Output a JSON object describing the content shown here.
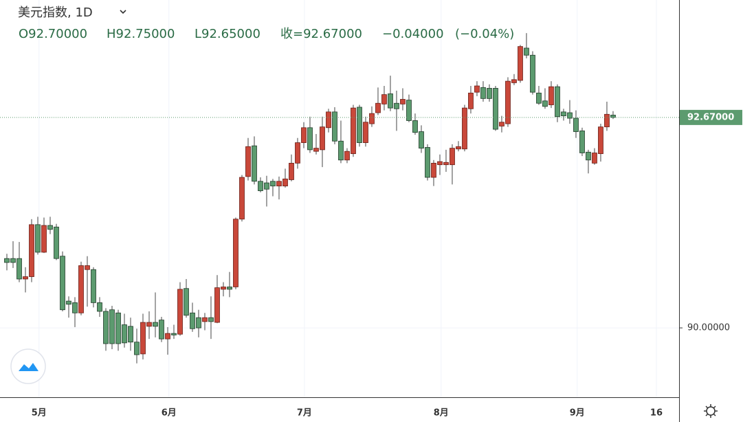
{
  "header": {
    "title": "美元指数, 1D",
    "ohlc": [
      "O92.70000",
      "H92.75000",
      "L92.65000",
      "收=92.67000",
      "−0.04000",
      "(−0.04%)"
    ]
  },
  "chart_data": {
    "type": "candlestick",
    "open": [
      90.88,
      90.88,
      90.88,
      90.62,
      90.65,
      91.31,
      90.96,
      91.3,
      91.28,
      90.91,
      90.34,
      90.32,
      90.19,
      90.74,
      90.74,
      90.32,
      90.21,
      90.23,
      90.19,
      90.04,
      90.02,
      89.82,
      89.67,
      90.02,
      90.07,
      90.1,
      89.86,
      89.93,
      89.92,
      90.5,
      90.19,
      90.13,
      90.08,
      90.13,
      90.07,
      90.49,
      90.52,
      90.52,
      91.38,
      91.92,
      92.31,
      91.86,
      91.84,
      91.86,
      91.8,
      91.8,
      91.88,
      92.09,
      92.35,
      92.54,
      92.24,
      92.26,
      92.54,
      92.74,
      92.37,
      92.13,
      92.21,
      92.8,
      92.35,
      92.59,
      92.73,
      92.84,
      92.97,
      92.85,
      92.84,
      92.89,
      92.63,
      92.49,
      92.29,
      91.91,
      92.07,
      92.07,
      92.07,
      92.27,
      92.27,
      92.78,
      92.99,
      93.05,
      93.04,
      93.04,
      92.56,
      92.59,
      93.11,
      93.14,
      93.55,
      93.46,
      92.98,
      92.88,
      92.83,
      93.06,
      92.74,
      92.73,
      92.66,
      92.5,
      92.23,
      92.09,
      92.21,
      92.55,
      92.7
    ],
    "high": [
      90.94,
      91.1,
      91.09,
      90.77,
      91.38,
      91.41,
      91.4,
      91.41,
      91.32,
      90.97,
      90.4,
      90.39,
      90.84,
      90.91,
      90.77,
      90.39,
      90.25,
      90.28,
      90.23,
      90.18,
      90.13,
      89.99,
      90.18,
      90.21,
      90.45,
      90.14,
      90.01,
      90.04,
      90.58,
      90.62,
      90.32,
      90.23,
      90.19,
      90.4,
      90.67,
      90.58,
      90.71,
      91.4,
      91.94,
      92.41,
      92.43,
      91.91,
      91.93,
      91.89,
      91.92,
      92.02,
      92.2,
      92.41,
      92.61,
      92.68,
      92.46,
      92.68,
      92.78,
      92.8,
      92.63,
      92.28,
      92.83,
      92.83,
      92.68,
      92.81,
      93.05,
      93.07,
      93.2,
      93.01,
      93.04,
      92.96,
      92.72,
      92.57,
      92.33,
      92.13,
      92.2,
      92.26,
      92.33,
      92.37,
      92.83,
      93.07,
      93.13,
      93.13,
      93.09,
      93.07,
      92.69,
      93.18,
      93.22,
      93.59,
      93.74,
      93.51,
      93.07,
      93.04,
      93.13,
      93.09,
      92.78,
      92.89,
      92.76,
      92.54,
      92.26,
      92.28,
      92.59,
      92.87,
      92.75
    ],
    "low": [
      90.73,
      90.76,
      90.58,
      90.45,
      90.58,
      90.93,
      90.95,
      91.19,
      90.86,
      90.21,
      90.13,
      90.01,
      90.16,
      90.27,
      90.26,
      90.14,
      89.71,
      89.73,
      89.71,
      89.75,
      89.71,
      89.55,
      89.6,
      89.86,
      89.88,
      89.82,
      89.66,
      89.86,
      89.9,
      90.13,
      89.95,
      89.88,
      89.97,
      89.86,
      90.06,
      90.4,
      90.39,
      90.49,
      91.35,
      91.87,
      91.82,
      91.72,
      91.54,
      91.67,
      91.63,
      91.78,
      91.86,
      92.02,
      92.28,
      92.22,
      92.2,
      92.04,
      92.48,
      92.33,
      92.09,
      92.09,
      92.17,
      92.3,
      92.3,
      92.55,
      92.7,
      92.76,
      92.75,
      92.5,
      92.76,
      92.61,
      92.45,
      92.22,
      91.87,
      91.8,
      91.94,
      91.98,
      91.82,
      92.24,
      92.24,
      92.72,
      92.94,
      92.87,
      92.87,
      92.5,
      92.48,
      92.55,
      93.08,
      93.11,
      93.42,
      92.96,
      92.83,
      92.78,
      92.79,
      92.61,
      92.63,
      92.59,
      92.41,
      92.18,
      91.96,
      92.07,
      92.11,
      92.5,
      92.65
    ],
    "close": [
      90.83,
      90.83,
      90.62,
      90.65,
      91.31,
      90.96,
      91.3,
      91.25,
      90.88,
      90.23,
      90.3,
      90.19,
      90.79,
      90.79,
      90.32,
      90.21,
      89.8,
      89.8,
      89.8,
      89.81,
      89.82,
      89.66,
      90.07,
      90.07,
      90.02,
      89.86,
      89.93,
      89.91,
      90.49,
      90.16,
      89.99,
      90.0,
      90.13,
      90.08,
      90.51,
      90.52,
      90.49,
      91.38,
      91.91,
      92.3,
      91.86,
      91.74,
      91.76,
      91.8,
      91.86,
      91.89,
      92.09,
      92.35,
      92.54,
      92.26,
      92.28,
      92.55,
      92.74,
      92.37,
      92.13,
      92.24,
      92.79,
      92.35,
      92.61,
      92.72,
      92.85,
      92.96,
      92.79,
      92.78,
      92.9,
      92.63,
      92.48,
      92.28,
      91.91,
      92.09,
      92.11,
      92.1,
      92.28,
      92.3,
      92.79,
      92.98,
      93.07,
      92.91,
      92.91,
      92.52,
      92.61,
      93.13,
      93.15,
      93.57,
      93.46,
      92.99,
      92.85,
      92.81,
      93.06,
      92.68,
      92.69,
      92.66,
      92.49,
      92.22,
      92.13,
      92.22,
      92.55,
      92.71,
      92.67
    ],
    "up_color": "#c9483a",
    "down_color": "#5c9b6f",
    "xlim": [
      -1.11,
      108.67
    ],
    "xticks": [
      {
        "value": 5.2,
        "label": "5月"
      },
      {
        "value": 26.2,
        "label": "6月"
      },
      {
        "value": 48.1,
        "label": "7月"
      },
      {
        "value": 70.2,
        "label": "8月"
      },
      {
        "value": 92.2,
        "label": "9月"
      },
      {
        "value": 105,
        "label": "16"
      }
    ],
    "ylim": [
      89.12,
      94.16
    ],
    "yticks": [
      {
        "value": 90,
        "label": "90.00000"
      }
    ],
    "last_price": {
      "value": 92.67,
      "label": "92.67000"
    },
    "grid": true
  }
}
